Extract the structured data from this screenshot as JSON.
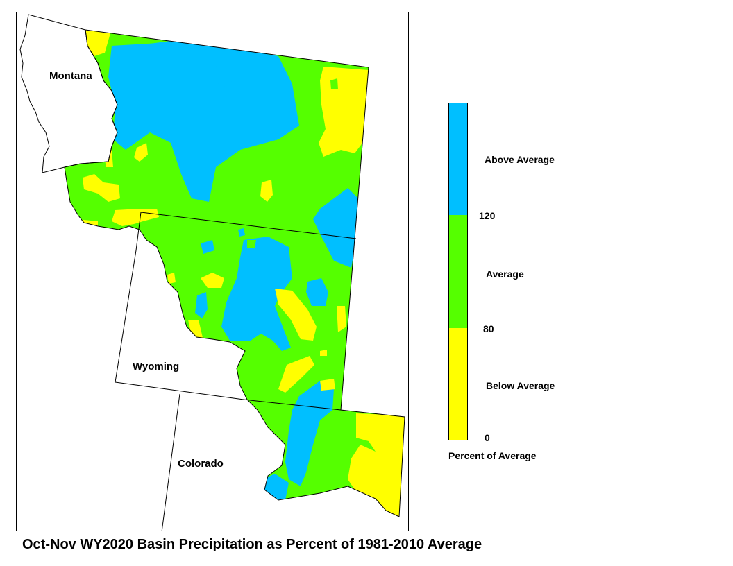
{
  "map": {
    "states": [
      "Montana",
      "Wyoming",
      "Colorado"
    ]
  },
  "legend": {
    "categories": [
      {
        "label": "Above Average",
        "color": "#00BFFF"
      },
      {
        "label": "Average",
        "color": "#55FF00"
      },
      {
        "label": "Below Average",
        "color": "#FFFF00"
      }
    ],
    "breaks": [
      "120",
      "80",
      "0"
    ],
    "caption": "Percent of Average"
  },
  "title": "Oct-Nov WY2020 Basin Precipitation as Percent of 1981-2010 Average"
}
